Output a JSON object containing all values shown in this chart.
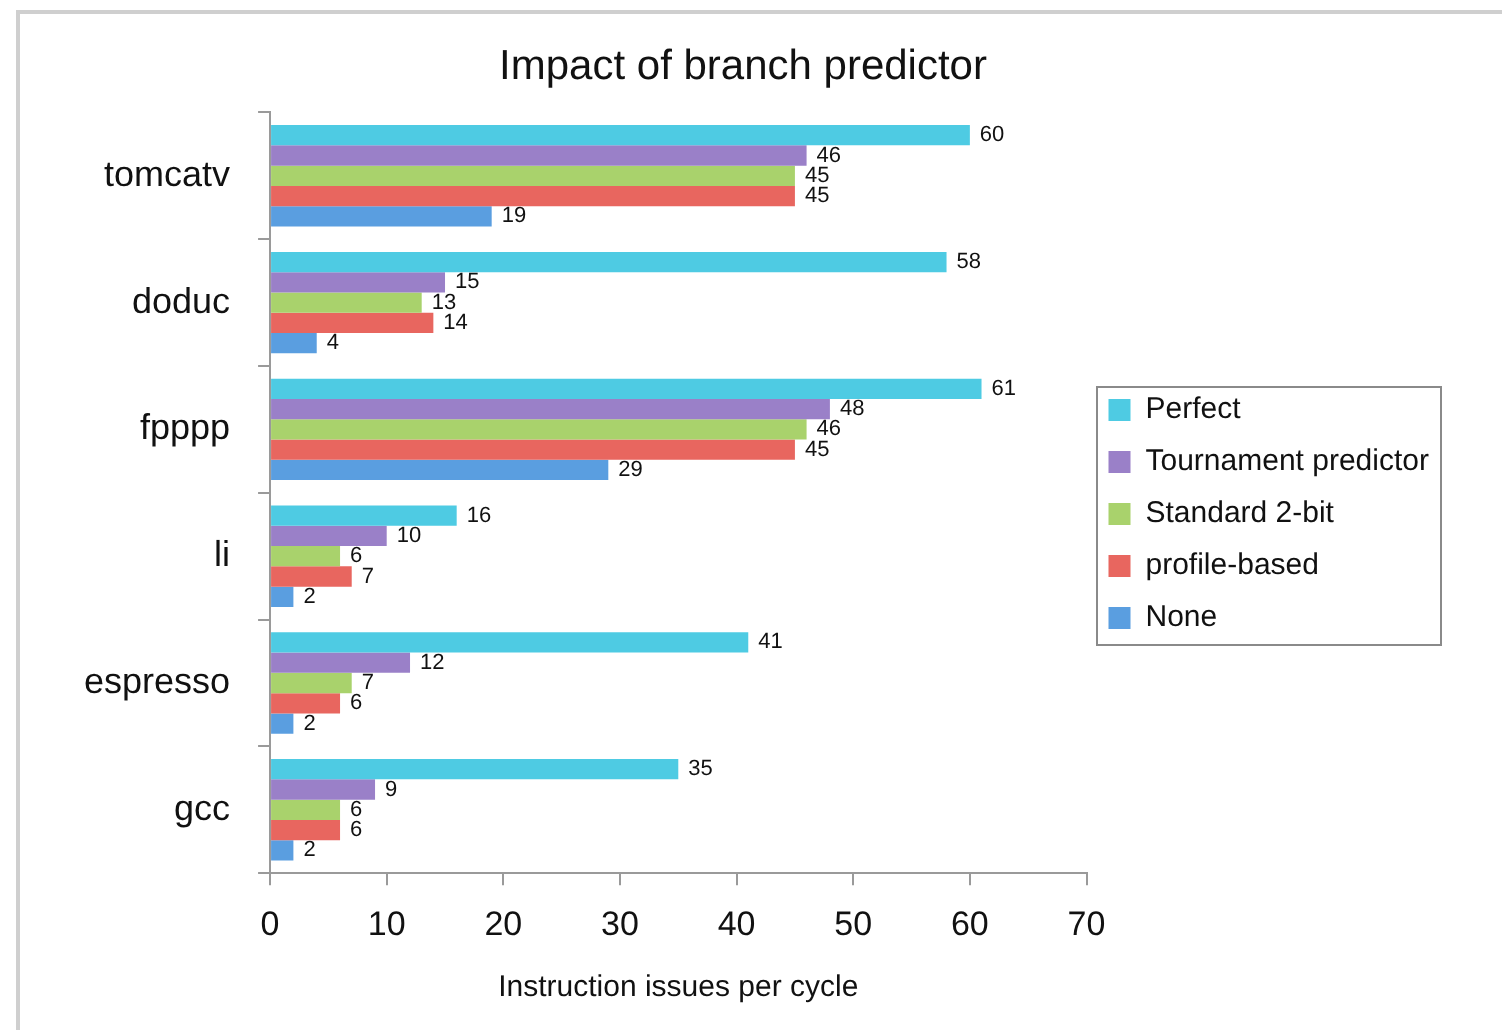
{
  "chart_data": {
    "type": "bar",
    "orientation": "horizontal",
    "title": "Impact of branch predictor",
    "xlabel": "Instruction issues per cycle",
    "categories": [
      "tomcatv",
      "doduc",
      "fpppp",
      "li",
      "espresso",
      "gcc"
    ],
    "series": [
      {
        "name": "Perfect",
        "color": "#4ecbe3",
        "values": [
          60,
          58,
          61,
          16,
          41,
          35
        ]
      },
      {
        "name": "Tournament predictor",
        "color": "#9a80c8",
        "values": [
          46,
          15,
          48,
          10,
          12,
          9
        ]
      },
      {
        "name": "Standard 2-bit",
        "color": "#a9d26c",
        "values": [
          45,
          13,
          46,
          6,
          7,
          6
        ]
      },
      {
        "name": "profile-based",
        "color": "#e8665f",
        "values": [
          45,
          14,
          45,
          7,
          6,
          6
        ]
      },
      {
        "name": "None",
        "color": "#5a9ee0",
        "values": [
          19,
          4,
          29,
          2,
          2,
          2
        ]
      }
    ],
    "xlim": [
      0,
      70
    ],
    "xticks": [
      0,
      10,
      20,
      30,
      40,
      50,
      60,
      70
    ],
    "grid": false,
    "legend": "right",
    "data_labels": true
  }
}
